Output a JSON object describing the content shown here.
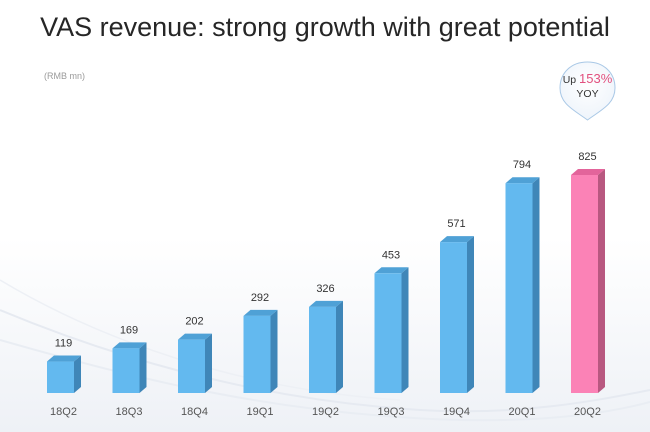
{
  "title": "VAS revenue: strong growth with great potential",
  "unit_note": "(RMB mn)",
  "badge": {
    "prefix": "Up",
    "value": "153%",
    "suffix": "YOY"
  },
  "colors": {
    "bar_front": "#63b9ef",
    "bar_side": "#3f86b8",
    "bar_top": "#4fa1d6",
    "highlight_front": "#fb82b6",
    "highlight_side": "#b85880",
    "highlight_top": "#e3649b",
    "badge_accent": "#e2517f"
  },
  "chart_data": {
    "type": "bar",
    "title": "VAS revenue: strong growth with great potential",
    "ylabel": "(RMB mn)",
    "categories": [
      "18Q2",
      "18Q3",
      "18Q4",
      "19Q1",
      "19Q2",
      "19Q3",
      "19Q4",
      "20Q1",
      "20Q2"
    ],
    "values": [
      119,
      169,
      202,
      292,
      326,
      453,
      571,
      794,
      825
    ],
    "data_labels": [
      "119",
      "169",
      "202",
      "292",
      "326",
      "453",
      "571",
      "794",
      "825"
    ],
    "highlight_index": 8,
    "style": "3d-bars",
    "grid": false,
    "legend": "none"
  }
}
